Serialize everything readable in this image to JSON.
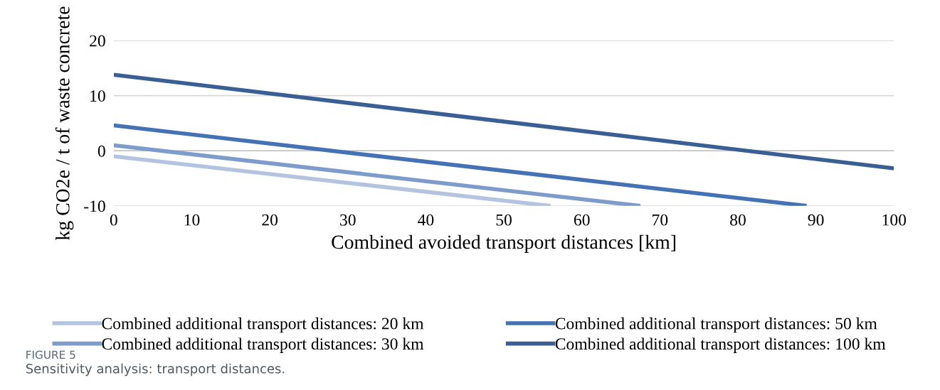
{
  "chart_data": {
    "type": "line",
    "xlabel": "Combined avoided transport distances [km]",
    "ylabel": "kg CO2e / t of waste concrete",
    "xlim": [
      0,
      100
    ],
    "xticks": [
      0,
      10,
      20,
      30,
      40,
      50,
      60,
      70,
      80,
      90,
      100
    ],
    "ylim": [
      -10,
      20
    ],
    "yticks": [
      {
        "value": -10,
        "label": "-10"
      },
      0,
      10,
      20
    ],
    "grid": "y",
    "legend": "bottom",
    "marker": "none",
    "line_style": "solid",
    "ref_lines": [
      {
        "axis": "y",
        "value": 0,
        "color": "#bfbfbf"
      }
    ],
    "series": [
      {
        "name": "Combined additional transport distances: 20 km",
        "color": "#b4c3e0",
        "x": [
          0,
          56
        ],
        "values": [
          -1.0,
          -10
        ]
      },
      {
        "name": "Combined additional transport distances: 30 km",
        "color": "#7e9ccb",
        "x": [
          0,
          67.5
        ],
        "values": [
          1.0,
          -10
        ]
      },
      {
        "name": "Combined additional transport distances: 50 km",
        "color": "#4472b4",
        "x": [
          0,
          88.8
        ],
        "values": [
          4.6,
          -10
        ]
      },
      {
        "name": "Combined additional transport distances: 100 km",
        "color": "#3a5f94",
        "x": [
          0,
          100
        ],
        "values": [
          13.8,
          -3.2
        ]
      }
    ],
    "annotations": [
      "FIGURE 5",
      "Sensitivity analysis: transport distances."
    ]
  }
}
